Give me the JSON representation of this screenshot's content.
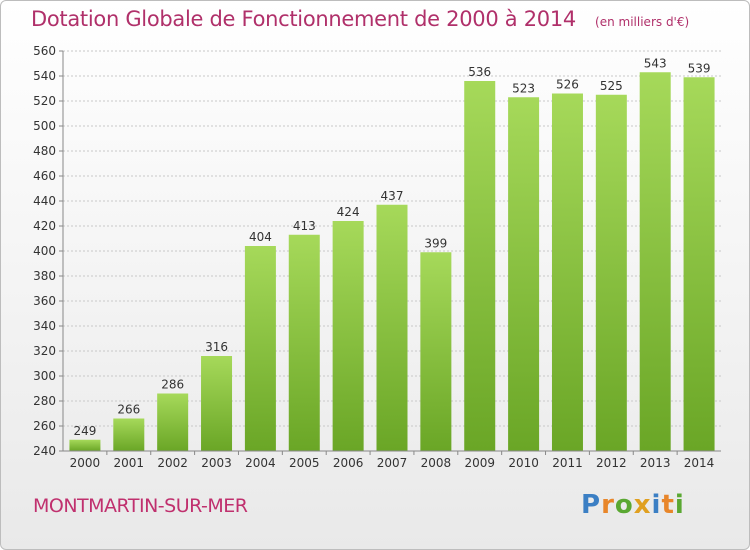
{
  "title": "Dotation Globale de Fonctionnement de 2000 à 2014",
  "unit_note": "(en milliers d'€)",
  "commune": "MONTMARTIN-SUR-MER",
  "logo": {
    "text": "Proxiti",
    "letters": [
      {
        "ch": "P",
        "color": "#3b7fc4"
      },
      {
        "ch": "r",
        "color": "#e8862a"
      },
      {
        "ch": "o",
        "color": "#5aa832"
      },
      {
        "ch": "x",
        "color": "#e0a020"
      },
      {
        "ch": "i",
        "color": "#3b7fc4"
      },
      {
        "ch": "t",
        "color": "#e8862a"
      },
      {
        "ch": "i",
        "color": "#5aa832"
      }
    ]
  },
  "colors": {
    "bar_light": "#a6d95a",
    "bar_dark": "#6aa626",
    "grid": "#c8c8c8",
    "title": "#b0306a"
  },
  "chart_data": {
    "type": "bar",
    "categories": [
      "2000",
      "2001",
      "2002",
      "2003",
      "2004",
      "2005",
      "2006",
      "2007",
      "2008",
      "2009",
      "2010",
      "2011",
      "2012",
      "2013",
      "2014"
    ],
    "values": [
      249,
      266,
      286,
      316,
      404,
      413,
      424,
      437,
      399,
      536,
      523,
      526,
      525,
      543,
      539
    ],
    "ylim": [
      240,
      560
    ],
    "yticks": [
      240,
      260,
      280,
      300,
      320,
      340,
      360,
      380,
      400,
      420,
      440,
      460,
      480,
      500,
      520,
      540,
      560
    ],
    "grid": true
  }
}
